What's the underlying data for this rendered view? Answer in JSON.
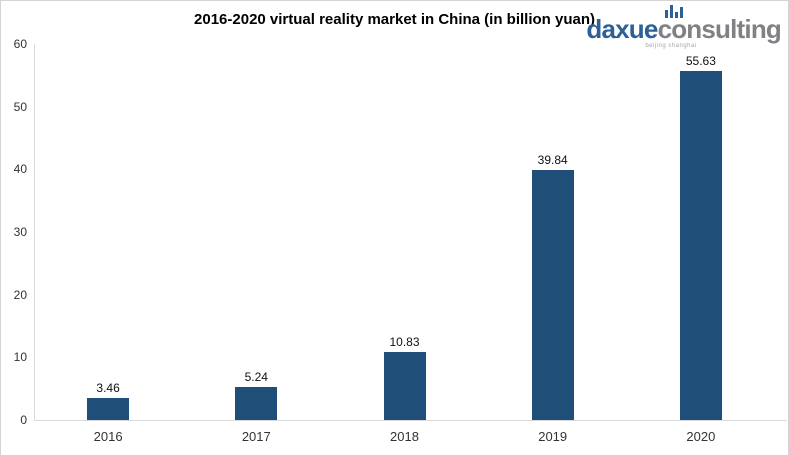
{
  "logo": {
    "brand_primary": "daxue",
    "brand_secondary": "consulting",
    "tagline": "beijing shanghai",
    "brand_blue": "#2d6096",
    "brand_gray": "#808184",
    "icon": "bar-chart-icon"
  },
  "colors": {
    "bar": "#1F4E79",
    "axis_line": "#d9d9d9",
    "tick_label": "#333333",
    "data_label": "#111111"
  },
  "chart_data": {
    "type": "bar",
    "title": "2016-2020 virtual reality market in China (in billion yuan)",
    "categories": [
      "2016",
      "2017",
      "2018",
      "2019",
      "2020"
    ],
    "values": [
      3.46,
      5.24,
      10.83,
      39.84,
      55.63
    ],
    "data_labels": [
      "3.46",
      "5.24",
      "10.83",
      "39.84",
      "55.63"
    ],
    "xlabel": "",
    "ylabel": "",
    "ylim": [
      0,
      60
    ],
    "ytick_step": 10,
    "yticks": [
      0,
      10,
      20,
      30,
      40,
      50,
      60
    ],
    "grid": false,
    "legend": false,
    "bar_color": "#1F4E79"
  }
}
